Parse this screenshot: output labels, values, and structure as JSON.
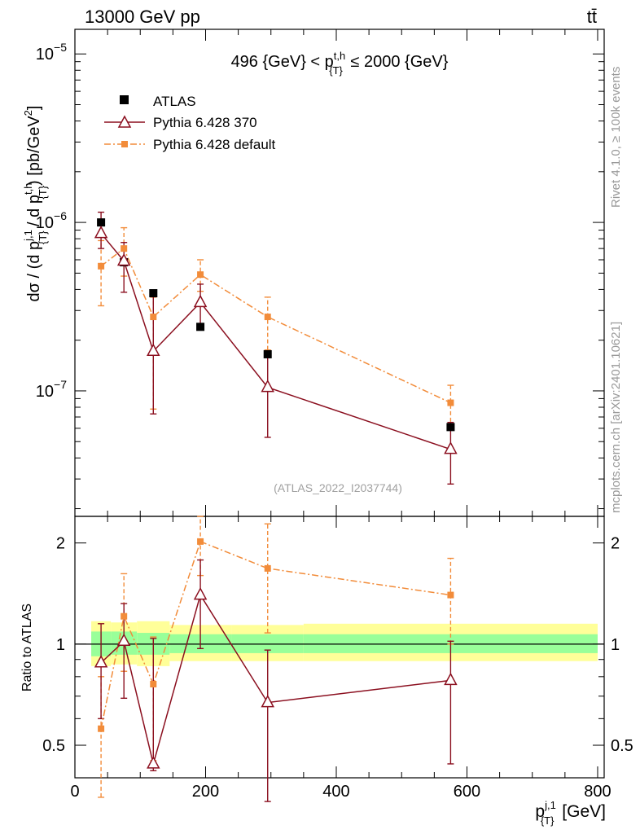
{
  "header": {
    "left": "13000 GeV pp",
    "right": "tt̄"
  },
  "side_labels": {
    "rivet": "Rivet 4.1.0, ≥ 100k events",
    "mcplots": "mcplots.cern.ch [arXiv:2401.10621]"
  },
  "chart_data": [
    {
      "type": "scatter",
      "panel": "main",
      "title": "496 {GeV} < p{T}t,h ≤ 2000 {GeV}",
      "title_parts": {
        "pre": "496 {GeV} < p",
        "sup": "t,h",
        "sub": "{T}",
        "post": " ≤ 2000 {GeV}"
      },
      "ylabel": "dσ / (d p{T}j,1 / d p{T}t,h) [pb/GeV²]",
      "ylabel_parts": {
        "a": "dσ / (d p",
        "sup1": "j,1",
        "sub1": "{T}",
        "b": " / d p",
        "sup2": "t,h",
        "sub2": "{T}",
        "c": ") [pb/GeV",
        "sq": "2",
        "d": "]"
      },
      "yscale": "log",
      "ylim": [
        1.8e-08,
        1.4e-05
      ],
      "xlim": [
        0,
        810
      ],
      "y_tick_labels": [
        {
          "value": 1e-05,
          "base": "10",
          "exp": "−5"
        },
        {
          "value": 1e-06,
          "base": "10",
          "exp": "−6"
        },
        {
          "value": 1e-07,
          "base": "10",
          "exp": "−7"
        }
      ],
      "watermark": "(ATLAS_2022_I2037744)",
      "legend": [
        {
          "name": "ATLAS",
          "marker": "square"
        },
        {
          "name": "Pythia 6.428 370",
          "marker": "triangle"
        },
        {
          "name": "Pythia 6.428 default",
          "marker": "small-square"
        }
      ],
      "series": [
        {
          "name": "ATLAS",
          "color": "#000000",
          "x": [
            40,
            75,
            120,
            192,
            295,
            575
          ],
          "y": [
            1e-06,
            5.8e-07,
            3.8e-07,
            2.4e-07,
            1.65e-07,
            6.1e-08
          ],
          "err_lo": [
            0,
            0,
            0,
            0,
            0,
            0
          ],
          "err_hi": [
            0,
            0,
            0,
            0,
            0,
            0
          ]
        },
        {
          "name": "Pythia 6.428 370",
          "color": "#8b0f1f",
          "x": [
            40,
            75,
            120,
            192,
            295,
            575
          ],
          "y": [
            8.6e-07,
            5.9e-07,
            1.72e-07,
            3.35e-07,
            1.05e-07,
            4.5e-08
          ],
          "err_lo": [
            7e-07,
            3.85e-07,
            7.3e-08,
            2.35e-07,
            5.3e-08,
            2.8e-08
          ],
          "err_hi": [
            1.15e-06,
            7.6e-07,
            3.8e-07,
            4.3e-07,
            1.6e-07,
            6.5e-08
          ]
        },
        {
          "name": "Pythia 6.428 default",
          "color": "#f28c3a",
          "x": [
            40,
            75,
            120,
            192,
            295,
            575
          ],
          "y": [
            5.5e-07,
            7e-07,
            2.75e-07,
            4.9e-07,
            2.75e-07,
            8.5e-08
          ],
          "err_lo": [
            3.2e-07,
            4.8e-07,
            7.8e-08,
            3.9e-07,
            1.75e-07,
            6e-08
          ],
          "err_hi": [
            7.8e-07,
            9.3e-07,
            3.6e-07,
            6e-07,
            3.6e-07,
            1.08e-07
          ]
        }
      ]
    },
    {
      "type": "scatter",
      "panel": "ratio",
      "ylabel": "Ratio to ATLAS",
      "xlabel": "p{T}j,1 [GeV]",
      "xlabel_parts": {
        "pre": "p",
        "sup": "j,1",
        "sub": "{T}",
        "post": " [GeV]"
      },
      "yscale": "log",
      "ylim": [
        0.4,
        2.4
      ],
      "xlim": [
        0,
        810
      ],
      "x_ticks": [
        0,
        200,
        400,
        600,
        800
      ],
      "x_tick_labels": [
        "0",
        "200",
        "400",
        "600",
        "800"
      ],
      "y_ticks": [
        0.5,
        1,
        2
      ],
      "y_tick_labels": [
        "0.5",
        "1",
        "2"
      ],
      "bands": [
        {
          "x0": 25,
          "x1": 55,
          "green": [
            0.92,
            1.09
          ],
          "yellow": [
            0.86,
            1.17
          ]
        },
        {
          "x0": 55,
          "x1": 95,
          "green": [
            0.93,
            1.09
          ],
          "yellow": [
            0.87,
            1.16
          ]
        },
        {
          "x0": 95,
          "x1": 145,
          "green": [
            0.93,
            1.08
          ],
          "yellow": [
            0.86,
            1.17
          ]
        },
        {
          "x0": 145,
          "x1": 240,
          "green": [
            0.94,
            1.07
          ],
          "yellow": [
            0.89,
            1.14
          ]
        },
        {
          "x0": 240,
          "x1": 350,
          "green": [
            0.94,
            1.07
          ],
          "yellow": [
            0.89,
            1.14
          ]
        },
        {
          "x0": 350,
          "x1": 800,
          "green": [
            0.94,
            1.07
          ],
          "yellow": [
            0.89,
            1.15
          ]
        }
      ],
      "series": [
        {
          "name": "Pythia 6.428 370",
          "color": "#8b0f1f",
          "x": [
            40,
            75,
            120,
            192,
            295,
            575
          ],
          "y": [
            0.88,
            1.02,
            0.44,
            1.4,
            0.67,
            0.78
          ],
          "err_lo": [
            0.6,
            0.69,
            0.42,
            0.97,
            0.34,
            0.44
          ],
          "err_hi": [
            1.15,
            1.32,
            1.04,
            1.78,
            0.96,
            1.02
          ]
        },
        {
          "name": "Pythia 6.428 default",
          "color": "#f28c3a",
          "x": [
            40,
            75,
            120,
            192,
            295,
            575
          ],
          "y": [
            0.56,
            1.21,
            0.76,
            2.02,
            1.68,
            1.4
          ],
          "err_lo": [
            0.35,
            0.83,
            0.45,
            1.6,
            1.08,
            1.0
          ],
          "err_hi": [
            0.8,
            1.62,
            1.05,
            2.4,
            2.28,
            1.8
          ]
        }
      ]
    }
  ]
}
